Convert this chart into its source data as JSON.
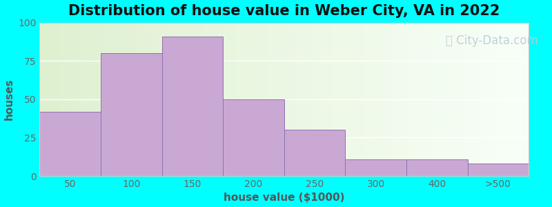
{
  "title": "Distribution of house value in Weber City, VA in 2022",
  "xlabel": "house value ($1000)",
  "ylabel": "houses",
  "bar_labels": [
    "50",
    "100",
    "150",
    "200",
    "250",
    "300",
    "400",
    ">500"
  ],
  "bar_heights": [
    42,
    80,
    91,
    50,
    30,
    11,
    11,
    8
  ],
  "bar_color": "#c9a8d4",
  "bar_edgecolor": "#9070b0",
  "bar_width": 1.0,
  "bar_positions": [
    0,
    1,
    2,
    3,
    4,
    5,
    6,
    7
  ],
  "yticks": [
    0,
    25,
    50,
    75,
    100
  ],
  "ylim": [
    0,
    100
  ],
  "xlim": [
    -0.5,
    7.5
  ],
  "background_outer": "#00FFFF",
  "background_inner_left": "#dff0d0",
  "background_inner_right": "#f8fff8",
  "title_fontsize": 15,
  "axis_label_fontsize": 11,
  "tick_fontsize": 10,
  "watermark_text": "City-Data.com",
  "watermark_color": "#b8cdd5",
  "watermark_fontsize": 12
}
